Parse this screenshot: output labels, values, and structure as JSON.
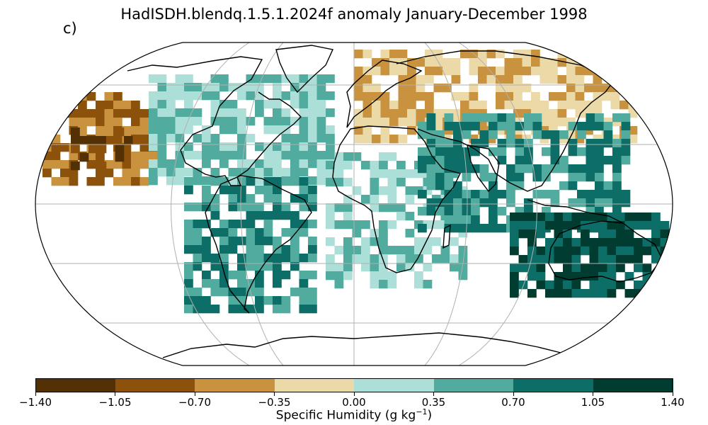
{
  "title": "HadISDH.blendq.1.5.1.2024f anomaly January-December 1998",
  "panel_label": "c)",
  "colorbar": {
    "label_main": "Specific Humidity (g kg",
    "label_exp": "−1",
    "label_close": ")",
    "ticks": [
      "−1.40",
      "−1.05",
      "−0.70",
      "−0.35",
      "0.00",
      "0.35",
      "0.70",
      "1.05",
      "1.40"
    ],
    "colors": [
      "#543005",
      "#8c510a",
      "#c8923e",
      "#ecd9a8",
      "#addfd9",
      "#51ab9e",
      "#0c6e66",
      "#003c30"
    ]
  },
  "map": {
    "projection": "Robinson",
    "gridlines": true,
    "coastlines": true,
    "anomaly_regions": [
      {
        "name": "north-pacific-dry",
        "level": -0.7
      },
      {
        "name": "north-pacific-core",
        "level": -1.05
      },
      {
        "name": "north-america-moist",
        "level": 0.35
      },
      {
        "name": "south-america-moist",
        "level": 0.7
      },
      {
        "name": "africa-moist",
        "level": 0.35
      },
      {
        "name": "eurasia-dry",
        "level": -0.35
      },
      {
        "name": "south-asia-moist",
        "level": 0.7
      },
      {
        "name": "australia-moist",
        "level": 1.05
      }
    ]
  }
}
